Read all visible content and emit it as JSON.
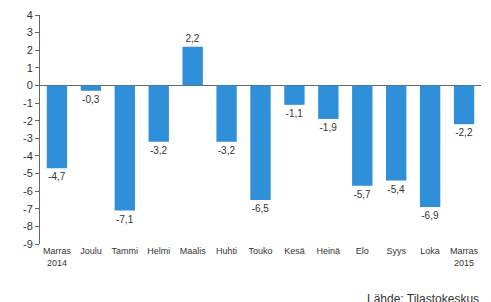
{
  "chart_data": {
    "type": "bar",
    "categories": [
      "Marras 2014",
      "Joulu",
      "Tammi",
      "Helmi",
      "Maalis",
      "Huhti",
      "Touko",
      "Kesä",
      "Heinä",
      "Elo",
      "Syys",
      "Loka",
      "Marras 2015"
    ],
    "values": [
      -4.7,
      -0.3,
      -7.1,
      -3.2,
      2.2,
      -3.2,
      -6.5,
      -1.1,
      -1.9,
      -5.7,
      -5.4,
      -6.9,
      -2.2
    ],
    "value_labels": [
      "-4,7",
      "-0,3",
      "-7,1",
      "-3,2",
      "2,2",
      "-3,2",
      "-6,5",
      "-1,1",
      "-1,9",
      "-5,7",
      "-5,4",
      "-6,9",
      "-2,2"
    ],
    "data_labels": true,
    "color": "#2f8fd8",
    "ylim": [
      -9,
      4
    ],
    "yticks": [
      -9,
      -8,
      -7,
      -6,
      -5,
      -4,
      -3,
      -2,
      -1,
      0,
      1,
      2,
      3,
      4
    ],
    "grid": false,
    "annotations": [
      "Lähde: Tilastokeskus"
    ]
  }
}
